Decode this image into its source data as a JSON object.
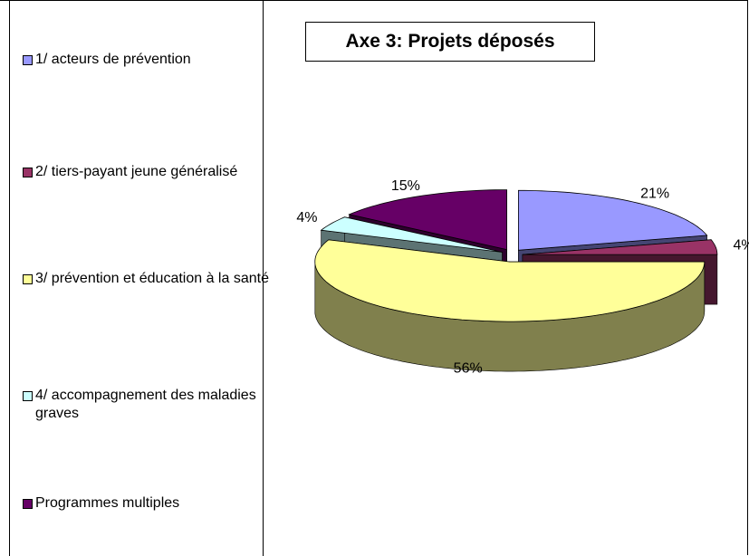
{
  "chart_data": {
    "type": "pie3d",
    "title": "Axe 3: Projets déposés",
    "categories": [
      "1/ acteurs de prévention",
      "2/ tiers-payant jeune généralisé",
      "3/ prévention et éducation à la santé",
      "4/ accompagnement des maladies graves",
      "Programmes multiples"
    ],
    "values": [
      21,
      4,
      56,
      4,
      15
    ],
    "value_labels": [
      "21%",
      "4%",
      "56%",
      "4%",
      "15%"
    ],
    "colors": [
      "#9999ff",
      "#993366",
      "#ffff99",
      "#ccffff",
      "#660066"
    ],
    "legend": "left"
  }
}
